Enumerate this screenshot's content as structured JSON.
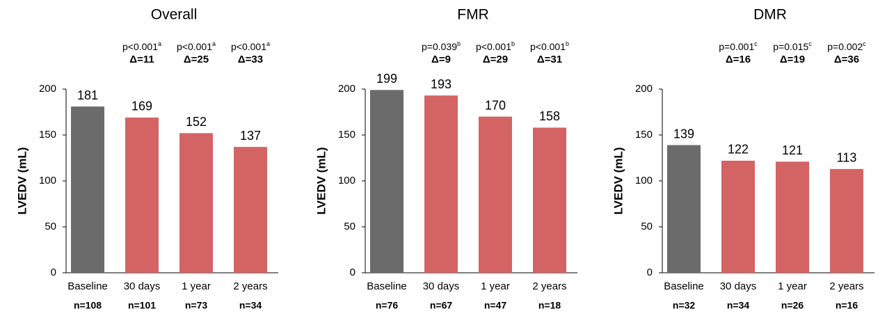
{
  "chart_data": [
    {
      "type": "bar",
      "title": "Overall",
      "y_label": "LVEDV (mL)",
      "categories": [
        "Baseline",
        "30 days",
        "1 year",
        "2 years"
      ],
      "values": [
        181,
        169,
        152,
        137
      ],
      "colors": [
        "#6b6b6b",
        "#d46464",
        "#d46464",
        "#d46464"
      ],
      "n_labels": [
        "n=108",
        "n=101",
        "n=73",
        "n=34"
      ],
      "p_values": [
        null,
        "p<0.001",
        "p<0.001",
        "p<0.001"
      ],
      "p_superscripts": [
        null,
        "a",
        "a",
        "a"
      ],
      "deltas": [
        null,
        "Δ=11",
        "Δ=25",
        "Δ=33"
      ],
      "delta_color": "#4cae4c",
      "ylim": [
        0,
        200
      ],
      "yticks": [
        0,
        50,
        100,
        150,
        200
      ]
    },
    {
      "type": "bar",
      "title": "FMR",
      "y_label": "LVEDV (mL)",
      "categories": [
        "Baseline",
        "30 days",
        "1 year",
        "2 years"
      ],
      "values": [
        199,
        193,
        170,
        158
      ],
      "colors": [
        "#6b6b6b",
        "#d46464",
        "#d46464",
        "#d46464"
      ],
      "n_labels": [
        "n=76",
        "n=67",
        "n=47",
        "n=18"
      ],
      "p_values": [
        null,
        "p=0.039",
        "p<0.001",
        "p<0.001"
      ],
      "p_superscripts": [
        null,
        "b",
        "b",
        "b"
      ],
      "deltas": [
        null,
        "Δ=9",
        "Δ=29",
        "Δ=31"
      ],
      "delta_color": "#4cae4c",
      "ylim": [
        0,
        200
      ],
      "yticks": [
        0,
        50,
        100,
        150,
        200
      ]
    },
    {
      "type": "bar",
      "title": "DMR",
      "y_label": "LVEDV (mL)",
      "categories": [
        "Baseline",
        "30 days",
        "1 year",
        "2 years"
      ],
      "values": [
        139,
        122,
        121,
        113
      ],
      "colors": [
        "#6b6b6b",
        "#d46464",
        "#d46464",
        "#d46464"
      ],
      "n_labels": [
        "n=32",
        "n=34",
        "n=26",
        "n=16"
      ],
      "p_values": [
        null,
        "p=0.001",
        "p=0.015",
        "p=0.002"
      ],
      "p_superscripts": [
        null,
        "c",
        "c",
        "c"
      ],
      "deltas": [
        null,
        "Δ=16",
        "Δ=19",
        "Δ=36"
      ],
      "delta_color": "#4cae4c",
      "ylim": [
        0,
        200
      ],
      "yticks": [
        0,
        50,
        100,
        150,
        200
      ]
    }
  ]
}
